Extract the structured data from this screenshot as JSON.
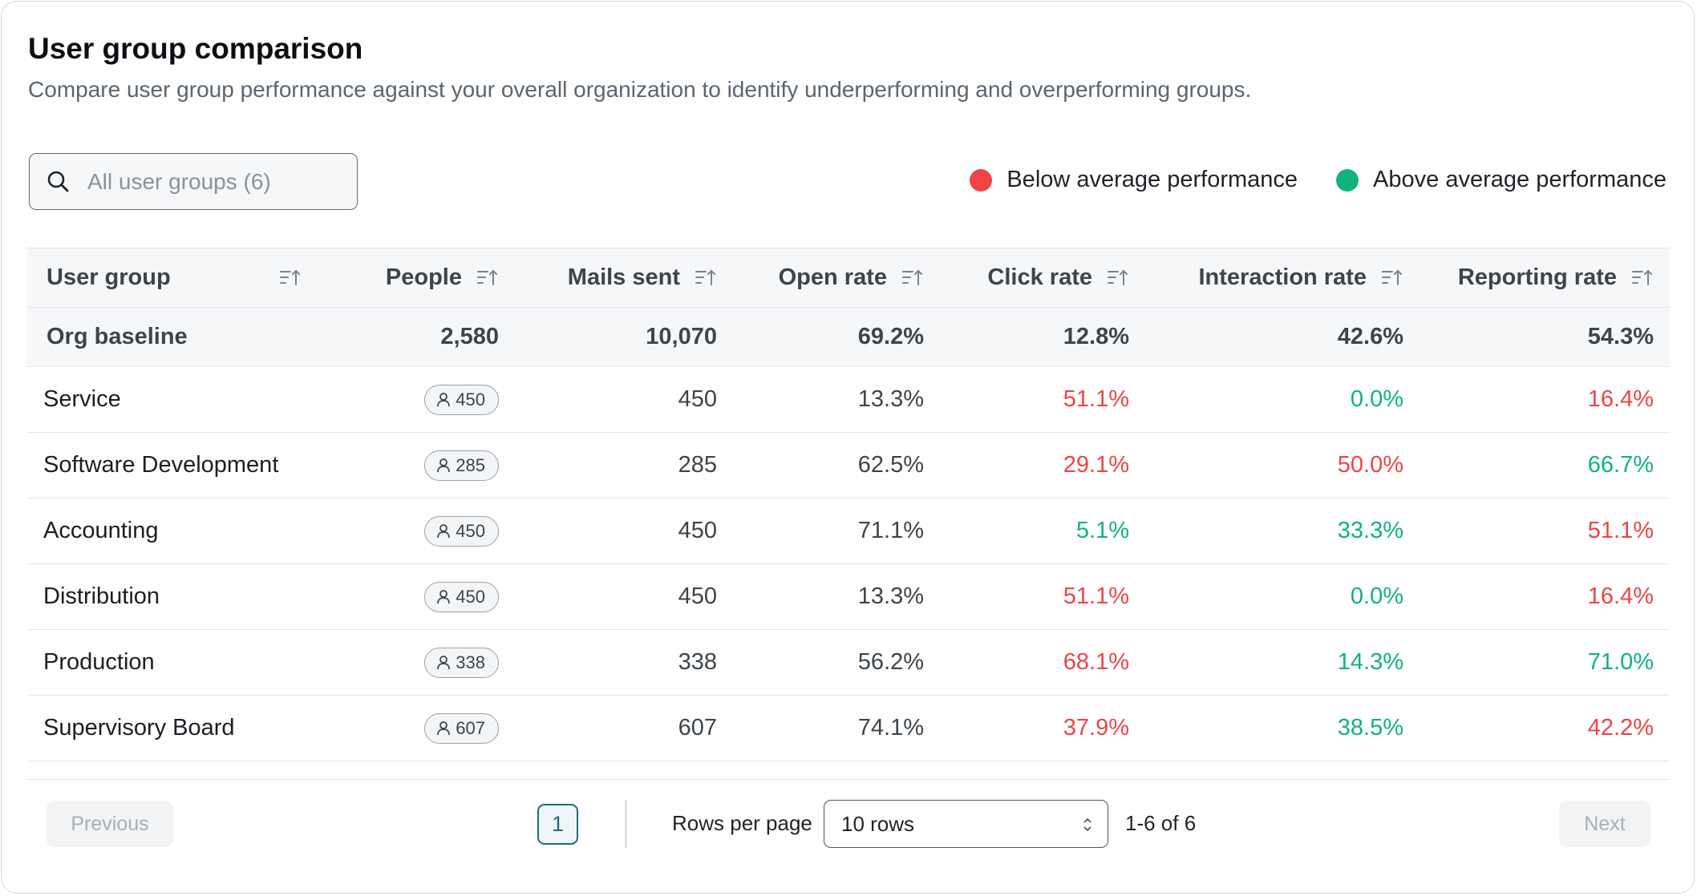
{
  "header": {
    "title": "User group comparison",
    "subtitle": "Compare user group performance against your overall organization to identify underperforming and overperforming groups."
  },
  "search": {
    "placeholder": "All user groups (6)",
    "icon": "search-icon"
  },
  "legend": {
    "below": {
      "label": "Below average performance",
      "color": "#ef4444"
    },
    "above": {
      "label": "Above average performance",
      "color": "#10b37c"
    }
  },
  "table": {
    "columns": [
      "User group",
      "People",
      "Mails sent",
      "Open rate",
      "Click rate",
      "Interaction rate",
      "Reporting rate"
    ],
    "baseline": {
      "name": "Org baseline",
      "people": "2,580",
      "mails": "10,070",
      "open": "69.2%",
      "click": "12.8%",
      "interaction": "42.6%",
      "reporting": "54.3%"
    },
    "rows": [
      {
        "name": "Service",
        "people": "450",
        "mails": "450",
        "open": "13.3%",
        "click": "51.1%",
        "click_status": "below",
        "interaction": "0.0%",
        "interaction_status": "above",
        "reporting": "16.4%",
        "reporting_status": "below"
      },
      {
        "name": "Software Development",
        "people": "285",
        "mails": "285",
        "open": "62.5%",
        "click": "29.1%",
        "click_status": "below",
        "interaction": "50.0%",
        "interaction_status": "below",
        "reporting": "66.7%",
        "reporting_status": "above"
      },
      {
        "name": "Accounting",
        "people": "450",
        "mails": "450",
        "open": "71.1%",
        "click": "5.1%",
        "click_status": "above",
        "interaction": "33.3%",
        "interaction_status": "above",
        "reporting": "51.1%",
        "reporting_status": "below"
      },
      {
        "name": "Distribution",
        "people": "450",
        "mails": "450",
        "open": "13.3%",
        "click": "51.1%",
        "click_status": "below",
        "interaction": "0.0%",
        "interaction_status": "above",
        "reporting": "16.4%",
        "reporting_status": "below"
      },
      {
        "name": "Production",
        "people": "338",
        "mails": "338",
        "open": "56.2%",
        "click": "68.1%",
        "click_status": "below",
        "interaction": "14.3%",
        "interaction_status": "above",
        "reporting": "71.0%",
        "reporting_status": "above"
      },
      {
        "name": "Supervisory Board",
        "people": "607",
        "mails": "607",
        "open": "74.1%",
        "click": "37.9%",
        "click_status": "below",
        "interaction": "38.5%",
        "interaction_status": "above",
        "reporting": "42.2%",
        "reporting_status": "below"
      }
    ]
  },
  "pagination": {
    "previous": "Previous",
    "next": "Next",
    "current_page": "1",
    "rows_per_page_label": "Rows per page",
    "rows_per_page_value": "10 rows",
    "range": "1-6 of 6"
  }
}
